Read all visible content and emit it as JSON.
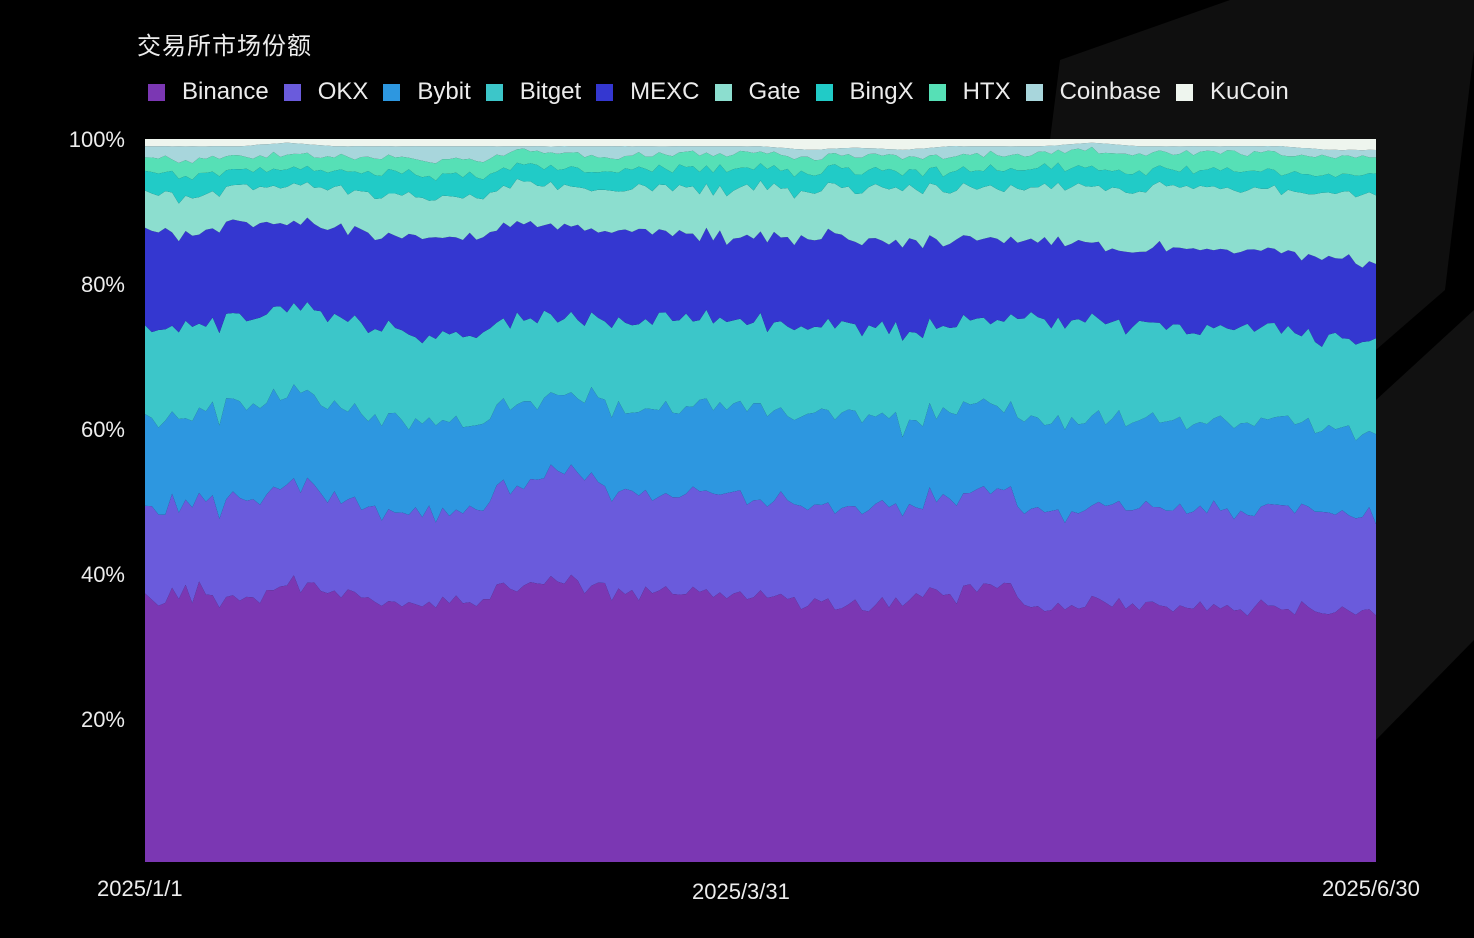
{
  "title": "交易所市场份额",
  "legend": [
    {
      "name": "Binance",
      "color": "#7b37b3"
    },
    {
      "name": "OKX",
      "color": "#6a5bdc"
    },
    {
      "name": "Bybit",
      "color": "#2d97e0"
    },
    {
      "name": "Bitget",
      "color": "#3cc6c9"
    },
    {
      "name": "MEXC",
      "color": "#3437d0"
    },
    {
      "name": "Gate",
      "color": "#8cdecf"
    },
    {
      "name": "BingX",
      "color": "#21cbc7"
    },
    {
      "name": "HTX",
      "color": "#56e0b6"
    },
    {
      "name": "Coinbase",
      "color": "#a8d6dc"
    },
    {
      "name": "KuCoin",
      "color": "#eef5ee"
    }
  ],
  "y_axis": {
    "ticks": [
      "100%",
      "80%",
      "60%",
      "40%",
      "20%"
    ]
  },
  "x_axis": {
    "ticks": [
      "2025/1/1",
      "2025/3/31",
      "2025/6/30"
    ]
  },
  "chart_data": {
    "type": "area",
    "stacked": true,
    "normalized": true,
    "title": "交易所市场份额",
    "xlabel": "",
    "ylabel": "",
    "ylim": [
      0,
      100
    ],
    "x_range": [
      "2025/1/1",
      "2025/6/30"
    ],
    "x_tick_labels": [
      "2025/1/1",
      "2025/3/31",
      "2025/6/30"
    ],
    "y_tick_labels": [
      "20%",
      "40%",
      "60%",
      "80%",
      "100%"
    ],
    "legend_position": "top",
    "grid": false,
    "x": [
      "2025/1/1",
      "2025/1/8",
      "2025/1/15",
      "2025/1/22",
      "2025/1/29",
      "2025/2/5",
      "2025/2/12",
      "2025/2/19",
      "2025/2/26",
      "2025/3/5",
      "2025/3/12",
      "2025/3/19",
      "2025/3/26",
      "2025/4/2",
      "2025/4/9",
      "2025/4/16",
      "2025/4/23",
      "2025/4/30",
      "2025/5/7",
      "2025/5/14",
      "2025/5/21",
      "2025/5/28",
      "2025/6/4",
      "2025/6/11",
      "2025/6/18",
      "2025/6/25",
      "2025/6/30"
    ],
    "series": [
      {
        "name": "Binance",
        "values": [
          36.0,
          37.0,
          36.5,
          38.0,
          37.5,
          36.0,
          36.0,
          36.5,
          38.5,
          39.0,
          37.0,
          37.5,
          37.0,
          36.5,
          36.0,
          35.8,
          36.0,
          37.5,
          38.0,
          35.0,
          36.5,
          35.5,
          35.0,
          35.0,
          35.5,
          35.0,
          34.5
        ]
      },
      {
        "name": "OKX",
        "values": [
          13.0,
          12.5,
          13.5,
          13.5,
          13.0,
          13.0,
          12.5,
          12.5,
          14.0,
          15.5,
          14.0,
          13.5,
          14.0,
          13.5,
          13.5,
          14.0,
          12.5,
          13.0,
          13.5,
          13.0,
          13.0,
          13.5,
          13.5,
          13.5,
          14.0,
          13.5,
          13.5
        ]
      },
      {
        "name": "Bybit",
        "values": [
          12.5,
          12.0,
          13.0,
          13.0,
          12.5,
          12.5,
          12.5,
          12.0,
          11.0,
          10.5,
          11.5,
          11.5,
          12.0,
          12.5,
          12.5,
          12.5,
          12.0,
          12.0,
          11.5,
          13.0,
          12.0,
          12.0,
          12.0,
          12.0,
          12.0,
          11.5,
          11.5
        ]
      },
      {
        "name": "Bitget",
        "values": [
          12.5,
          12.5,
          12.0,
          12.0,
          12.0,
          12.5,
          12.0,
          12.0,
          12.0,
          10.5,
          12.0,
          12.5,
          12.0,
          12.0,
          12.0,
          12.0,
          12.5,
          12.0,
          12.0,
          14.0,
          13.5,
          13.0,
          13.0,
          13.0,
          12.5,
          12.5,
          12.5
        ]
      },
      {
        "name": "MEXC",
        "values": [
          13.5,
          13.0,
          13.0,
          12.0,
          12.5,
          13.0,
          13.5,
          13.5,
          13.0,
          12.5,
          12.5,
          12.0,
          11.5,
          12.0,
          12.5,
          12.0,
          12.5,
          11.5,
          11.5,
          11.0,
          10.5,
          10.5,
          11.0,
          11.0,
          10.5,
          11.0,
          10.5
        ]
      },
      {
        "name": "Gate",
        "values": [
          5.0,
          5.0,
          5.0,
          5.0,
          5.5,
          5.5,
          5.5,
          5.5,
          5.5,
          5.5,
          5.5,
          6.5,
          6.5,
          7.0,
          6.5,
          7.0,
          7.5,
          7.0,
          7.0,
          7.5,
          8.0,
          8.5,
          8.5,
          8.5,
          8.5,
          9.0,
          9.5
        ]
      },
      {
        "name": "BingX",
        "values": [
          3.0,
          3.0,
          2.5,
          2.5,
          2.5,
          3.0,
          3.0,
          3.0,
          2.5,
          2.5,
          3.0,
          2.5,
          3.0,
          2.5,
          2.5,
          2.5,
          2.5,
          2.5,
          2.5,
          2.5,
          2.5,
          2.5,
          2.5,
          2.5,
          2.5,
          2.5,
          3.0
        ]
      },
      {
        "name": "HTX",
        "values": [
          2.0,
          2.0,
          2.0,
          2.0,
          2.0,
          2.0,
          2.0,
          2.0,
          2.0,
          2.0,
          2.0,
          2.0,
          2.0,
          2.0,
          2.0,
          2.0,
          2.0,
          2.0,
          2.0,
          2.0,
          2.5,
          2.5,
          2.5,
          2.5,
          2.5,
          2.5,
          2.5
        ]
      },
      {
        "name": "Coinbase",
        "values": [
          1.5,
          2.0,
          1.5,
          1.5,
          1.5,
          1.5,
          2.0,
          2.0,
          0.5,
          1.0,
          1.5,
          1.0,
          1.0,
          1.0,
          1.0,
          1.0,
          1.0,
          1.5,
          1.0,
          1.0,
          1.0,
          1.0,
          1.0,
          1.0,
          1.0,
          1.0,
          1.0
        ]
      },
      {
        "name": "KuCoin",
        "values": [
          1.0,
          1.0,
          1.0,
          0.5,
          1.0,
          1.0,
          1.0,
          1.0,
          1.0,
          1.0,
          1.0,
          1.0,
          1.0,
          1.0,
          1.5,
          1.2,
          1.5,
          1.0,
          1.0,
          1.0,
          0.5,
          1.0,
          1.0,
          1.0,
          1.0,
          1.5,
          1.5
        ]
      }
    ]
  }
}
